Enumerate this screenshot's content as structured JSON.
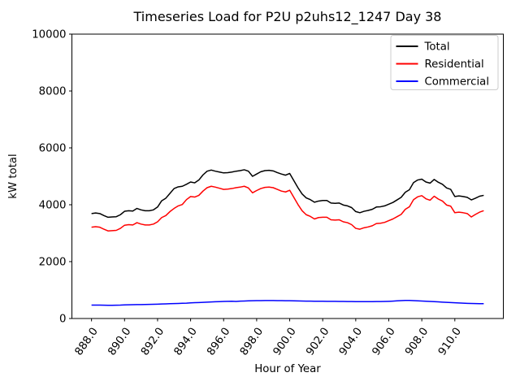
{
  "chart_data": {
    "type": "line",
    "title": "Timeseries Load for P2U p2uhs12_1247  Day 38",
    "xlabel": "Hour of Year",
    "ylabel": "kW total",
    "xlim": [
      886.8125,
      912.9375
    ],
    "ylim": [
      0,
      10000
    ],
    "grid": false,
    "legend_position": "upper right",
    "xtick_labels": [
      "888.0",
      "890.0",
      "892.0",
      "894.0",
      "896.0",
      "898.0",
      "900.0",
      "902.0",
      "904.0",
      "906.0",
      "908.0",
      "910.0"
    ],
    "xtick_values": [
      888,
      890,
      892,
      894,
      896,
      898,
      900,
      902,
      904,
      906,
      908,
      910
    ],
    "ytick_labels": [
      "0",
      "2000",
      "4000",
      "6000",
      "8000",
      "10000"
    ],
    "ytick_values": [
      0,
      2000,
      4000,
      6000,
      8000,
      10000
    ],
    "x": [
      888.0,
      888.25,
      888.5,
      888.75,
      889.0,
      889.25,
      889.5,
      889.75,
      890.0,
      890.25,
      890.5,
      890.75,
      891.0,
      891.25,
      891.5,
      891.75,
      892.0,
      892.25,
      892.5,
      892.75,
      893.0,
      893.25,
      893.5,
      893.75,
      894.0,
      894.25,
      894.5,
      894.75,
      895.0,
      895.25,
      895.5,
      895.75,
      896.0,
      896.25,
      896.5,
      896.75,
      897.0,
      897.25,
      897.5,
      897.75,
      898.0,
      898.25,
      898.5,
      898.75,
      899.0,
      899.25,
      899.5,
      899.75,
      900.0,
      900.25,
      900.5,
      900.75,
      901.0,
      901.25,
      901.5,
      901.75,
      902.0,
      902.25,
      902.5,
      902.75,
      903.0,
      903.25,
      903.5,
      903.75,
      904.0,
      904.25,
      904.5,
      904.75,
      905.0,
      905.25,
      905.5,
      905.75,
      906.0,
      906.25,
      906.5,
      906.75,
      907.0,
      907.25,
      907.5,
      907.75,
      908.0,
      908.25,
      908.5,
      908.75,
      909.0,
      909.25,
      909.5,
      909.75,
      910.0,
      910.25,
      910.5,
      910.75,
      911.0,
      911.25,
      911.5,
      911.75
    ],
    "series": [
      {
        "name": "Total",
        "color": "#000000",
        "values": [
          3690,
          3710,
          3690,
          3620,
          3560,
          3570,
          3580,
          3650,
          3770,
          3790,
          3780,
          3870,
          3820,
          3790,
          3790,
          3820,
          3920,
          4140,
          4230,
          4400,
          4570,
          4630,
          4650,
          4720,
          4800,
          4770,
          4870,
          5050,
          5180,
          5220,
          5180,
          5150,
          5120,
          5130,
          5150,
          5180,
          5200,
          5230,
          5180,
          5000,
          5080,
          5160,
          5200,
          5210,
          5190,
          5130,
          5080,
          5040,
          5100,
          4850,
          4600,
          4380,
          4240,
          4180,
          4090,
          4130,
          4150,
          4150,
          4060,
          4050,
          4060,
          3990,
          3960,
          3900,
          3760,
          3720,
          3770,
          3800,
          3840,
          3920,
          3930,
          3960,
          4020,
          4080,
          4170,
          4260,
          4440,
          4530,
          4780,
          4870,
          4900,
          4800,
          4760,
          4890,
          4790,
          4720,
          4590,
          4540,
          4290,
          4310,
          4290,
          4260,
          4170,
          4230,
          4300,
          4330
        ]
      },
      {
        "name": "Residential",
        "color": "#ff0000",
        "values": [
          3210,
          3230,
          3210,
          3140,
          3080,
          3090,
          3100,
          3170,
          3280,
          3300,
          3290,
          3370,
          3320,
          3290,
          3290,
          3320,
          3400,
          3550,
          3620,
          3760,
          3870,
          3960,
          4010,
          4180,
          4290,
          4270,
          4330,
          4480,
          4600,
          4650,
          4620,
          4580,
          4540,
          4550,
          4570,
          4600,
          4620,
          4650,
          4590,
          4420,
          4500,
          4570,
          4610,
          4620,
          4600,
          4540,
          4480,
          4450,
          4510,
          4260,
          4010,
          3790,
          3650,
          3590,
          3500,
          3550,
          3560,
          3560,
          3470,
          3460,
          3470,
          3400,
          3370,
          3300,
          3170,
          3140,
          3190,
          3220,
          3260,
          3340,
          3350,
          3380,
          3440,
          3500,
          3580,
          3660,
          3840,
          3930,
          4180,
          4280,
          4320,
          4210,
          4160,
          4300,
          4200,
          4130,
          3990,
          3950,
          3720,
          3740,
          3720,
          3690,
          3570,
          3660,
          3740,
          3790
        ]
      },
      {
        "name": "Commercial",
        "color": "#0000ff",
        "values": [
          470,
          472,
          470,
          468,
          466,
          465,
          467,
          470,
          478,
          482,
          485,
          488,
          490,
          494,
          498,
          500,
          505,
          510,
          515,
          520,
          525,
          530,
          535,
          540,
          550,
          556,
          562,
          568,
          575,
          582,
          588,
          594,
          600,
          605,
          608,
          600,
          610,
          615,
          620,
          624,
          628,
          630,
          631,
          632,
          631,
          630,
          628,
          626,
          624,
          621,
          618,
          615,
          612,
          610,
          608,
          607,
          606,
          605,
          604,
          603,
          601,
          599,
          597,
          595,
          593,
          592,
          591,
          591,
          593,
          595,
          597,
          599,
          604,
          612,
          620,
          630,
          636,
          634,
          628,
          622,
          616,
          608,
          600,
          592,
          584,
          576,
          568,
          560,
          552,
          545,
          538,
          533,
          529,
          526,
          523,
          520
        ]
      }
    ]
  }
}
